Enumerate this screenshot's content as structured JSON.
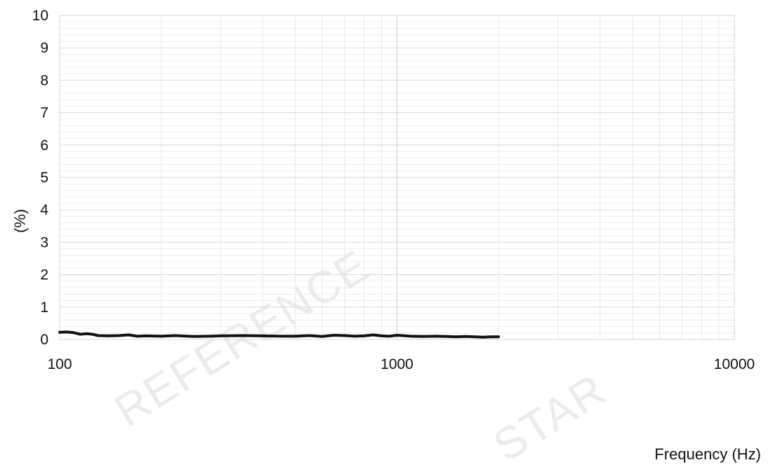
{
  "chart_data": {
    "type": "line",
    "title": "",
    "xlabel": "Frequency (Hz)",
    "ylabel": "(%)",
    "x_scale": "log",
    "xlim": [
      100,
      10000
    ],
    "ylim": [
      0,
      10
    ],
    "x_ticks": [
      100,
      1000,
      10000
    ],
    "x_tick_labels": [
      "100",
      "1000",
      "10000"
    ],
    "y_ticks": [
      0,
      1,
      2,
      3,
      4,
      5,
      6,
      7,
      8,
      9,
      10
    ],
    "y_tick_labels": [
      "0",
      "1",
      "2",
      "3",
      "4",
      "5",
      "6",
      "7",
      "8",
      "9",
      "10"
    ],
    "grid": true,
    "legend": "none",
    "series": [
      {
        "color": "#111111",
        "x": [
          100,
          105,
          110,
          115,
          120,
          125,
          130,
          140,
          150,
          160,
          170,
          180,
          200,
          220,
          250,
          280,
          300,
          350,
          400,
          450,
          500,
          550,
          600,
          650,
          700,
          750,
          800,
          850,
          900,
          950,
          1000,
          1100,
          1200,
          1300,
          1400,
          1500,
          1600,
          1700,
          1800,
          1900,
          2000
        ],
        "values": [
          0.22,
          0.23,
          0.21,
          0.16,
          0.18,
          0.16,
          0.12,
          0.11,
          0.12,
          0.14,
          0.1,
          0.11,
          0.1,
          0.12,
          0.09,
          0.1,
          0.11,
          0.12,
          0.11,
          0.1,
          0.1,
          0.12,
          0.09,
          0.13,
          0.12,
          0.1,
          0.11,
          0.14,
          0.11,
          0.1,
          0.13,
          0.1,
          0.09,
          0.1,
          0.09,
          0.08,
          0.09,
          0.08,
          0.07,
          0.08,
          0.08
        ]
      }
    ]
  },
  "watermark": {
    "text_1": "REFERENCE",
    "text_2": "STAR"
  }
}
